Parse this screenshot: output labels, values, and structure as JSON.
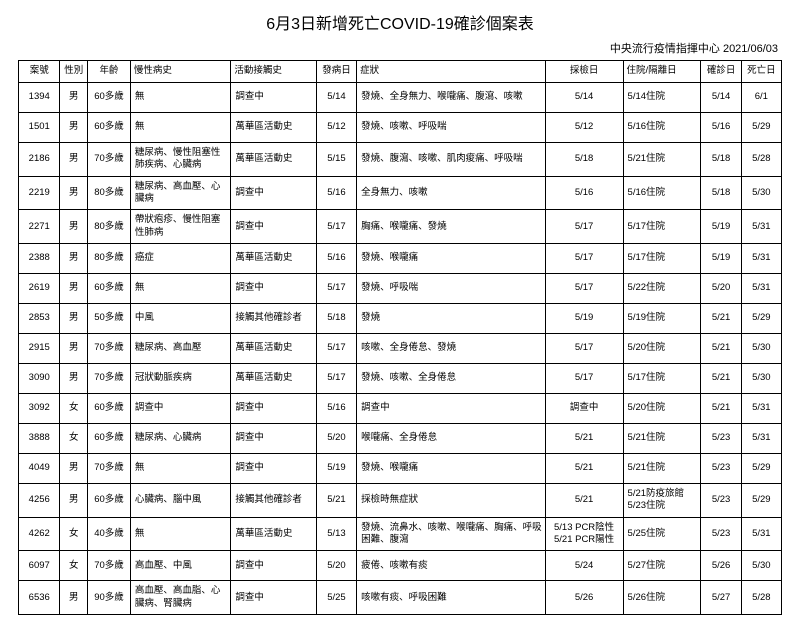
{
  "title": "6月3日新增死亡COVID-19確診個案表",
  "subtitle": "中央流行疫情指揮中心 2021/06/03",
  "columns": [
    "案號",
    "性別",
    "年齡",
    "慢性病史",
    "活動接觸史",
    "發病日",
    "症狀",
    "採檢日",
    "住院/隔離日",
    "確診日",
    "死亡日"
  ],
  "rows": [
    {
      "caseNo": "1394",
      "gender": "男",
      "age": "60多歲",
      "chronic": "無",
      "contact": "調查中",
      "onset": "5/14",
      "symptom": "發燒、全身無力、喉嚨痛、腹瀉、咳嗽",
      "test": "5/14",
      "admit": "5/14住院",
      "confirm": "5/14",
      "death": "6/1"
    },
    {
      "caseNo": "1501",
      "gender": "男",
      "age": "60多歲",
      "chronic": "無",
      "contact": "萬華區活動史",
      "onset": "5/12",
      "symptom": "發燒、咳嗽、呼吸喘",
      "test": "5/12",
      "admit": "5/16住院",
      "confirm": "5/16",
      "death": "5/29"
    },
    {
      "caseNo": "2186",
      "gender": "男",
      "age": "70多歲",
      "chronic": "糖尿病、慢性阻塞性肺疾病、心臟病",
      "contact": "萬華區活動史",
      "onset": "5/15",
      "symptom": "發燒、腹瀉、咳嗽、肌肉痠痛、呼吸喘",
      "test": "5/18",
      "admit": "5/21住院",
      "confirm": "5/18",
      "death": "5/28"
    },
    {
      "caseNo": "2219",
      "gender": "男",
      "age": "80多歲",
      "chronic": "糖尿病、高血壓、心臟病",
      "contact": "調查中",
      "onset": "5/16",
      "symptom": "全身無力、咳嗽",
      "test": "5/16",
      "admit": "5/16住院",
      "confirm": "5/18",
      "death": "5/30"
    },
    {
      "caseNo": "2271",
      "gender": "男",
      "age": "80多歲",
      "chronic": "帶狀疱疹、慢性阻塞性肺病",
      "contact": "調查中",
      "onset": "5/17",
      "symptom": "胸痛、喉嚨痛、發燒",
      "test": "5/17",
      "admit": "5/17住院",
      "confirm": "5/19",
      "death": "5/31"
    },
    {
      "caseNo": "2388",
      "gender": "男",
      "age": "80多歲",
      "chronic": "癌症",
      "contact": "萬華區活動史",
      "onset": "5/16",
      "symptom": "發燒、喉嚨痛",
      "test": "5/17",
      "admit": "5/17住院",
      "confirm": "5/19",
      "death": "5/31"
    },
    {
      "caseNo": "2619",
      "gender": "男",
      "age": "60多歲",
      "chronic": "無",
      "contact": "調查中",
      "onset": "5/17",
      "symptom": "發燒、呼吸喘",
      "test": "5/17",
      "admit": "5/22住院",
      "confirm": "5/20",
      "death": "5/31"
    },
    {
      "caseNo": "2853",
      "gender": "男",
      "age": "50多歲",
      "chronic": "中風",
      "contact": "接觸其他確診者",
      "onset": "5/18",
      "symptom": "發燒",
      "test": "5/19",
      "admit": "5/19住院",
      "confirm": "5/21",
      "death": "5/29"
    },
    {
      "caseNo": "2915",
      "gender": "男",
      "age": "70多歲",
      "chronic": "糖尿病、高血壓",
      "contact": "萬華區活動史",
      "onset": "5/17",
      "symptom": "咳嗽、全身倦怠、發燒",
      "test": "5/17",
      "admit": "5/20住院",
      "confirm": "5/21",
      "death": "5/30"
    },
    {
      "caseNo": "3090",
      "gender": "男",
      "age": "70多歲",
      "chronic": "冠狀動脈疾病",
      "contact": "萬華區活動史",
      "onset": "5/17",
      "symptom": "發燒、咳嗽、全身倦怠",
      "test": "5/17",
      "admit": "5/17住院",
      "confirm": "5/21",
      "death": "5/30"
    },
    {
      "caseNo": "3092",
      "gender": "女",
      "age": "60多歲",
      "chronic": "調查中",
      "contact": "調查中",
      "onset": "5/16",
      "symptom": "調查中",
      "test": "調查中",
      "admit": "5/20住院",
      "confirm": "5/21",
      "death": "5/31"
    },
    {
      "caseNo": "3888",
      "gender": "女",
      "age": "60多歲",
      "chronic": "糖尿病、心臟病",
      "contact": "調查中",
      "onset": "5/20",
      "symptom": "喉嚨痛、全身倦怠",
      "test": "5/21",
      "admit": "5/21住院",
      "confirm": "5/23",
      "death": "5/31"
    },
    {
      "caseNo": "4049",
      "gender": "男",
      "age": "70多歲",
      "chronic": "無",
      "contact": "調查中",
      "onset": "5/19",
      "symptom": "發燒、喉嚨痛",
      "test": "5/21",
      "admit": "5/21住院",
      "confirm": "5/23",
      "death": "5/29"
    },
    {
      "caseNo": "4256",
      "gender": "男",
      "age": "60多歲",
      "chronic": "心臟病、腦中風",
      "contact": "接觸其他確診者",
      "onset": "5/21",
      "symptom": "採檢時無症狀",
      "test": "5/21",
      "admit": "5/21防疫旅館\n5/23住院",
      "confirm": "5/23",
      "death": "5/29"
    },
    {
      "caseNo": "4262",
      "gender": "女",
      "age": "40多歲",
      "chronic": "無",
      "contact": "萬華區活動史",
      "onset": "5/13",
      "symptom": "發燒、流鼻水、咳嗽、喉嚨痛、胸痛、呼吸困難、腹瀉",
      "test": "5/13 PCR陰性\n5/21 PCR陽性",
      "admit": "5/25住院",
      "confirm": "5/23",
      "death": "5/31"
    },
    {
      "caseNo": "6097",
      "gender": "女",
      "age": "70多歲",
      "chronic": "高血壓、中風",
      "contact": "調查中",
      "onset": "5/20",
      "symptom": "疲倦、咳嗽有痰",
      "test": "5/24",
      "admit": "5/27住院",
      "confirm": "5/26",
      "death": "5/30"
    },
    {
      "caseNo": "6536",
      "gender": "男",
      "age": "90多歲",
      "chronic": "高血壓、高血脂、心臟病、腎臟病",
      "contact": "調查中",
      "onset": "5/25",
      "symptom": "咳嗽有痰、呼吸困難",
      "test": "5/26",
      "admit": "5/26住院",
      "confirm": "5/27",
      "death": "5/28"
    }
  ],
  "style": {
    "background_color": "#ffffff",
    "border_color": "#000000",
    "text_color": "#000000",
    "title_fontsize": 16,
    "cell_fontsize": 9.5,
    "subtitle_fontsize": 11
  }
}
